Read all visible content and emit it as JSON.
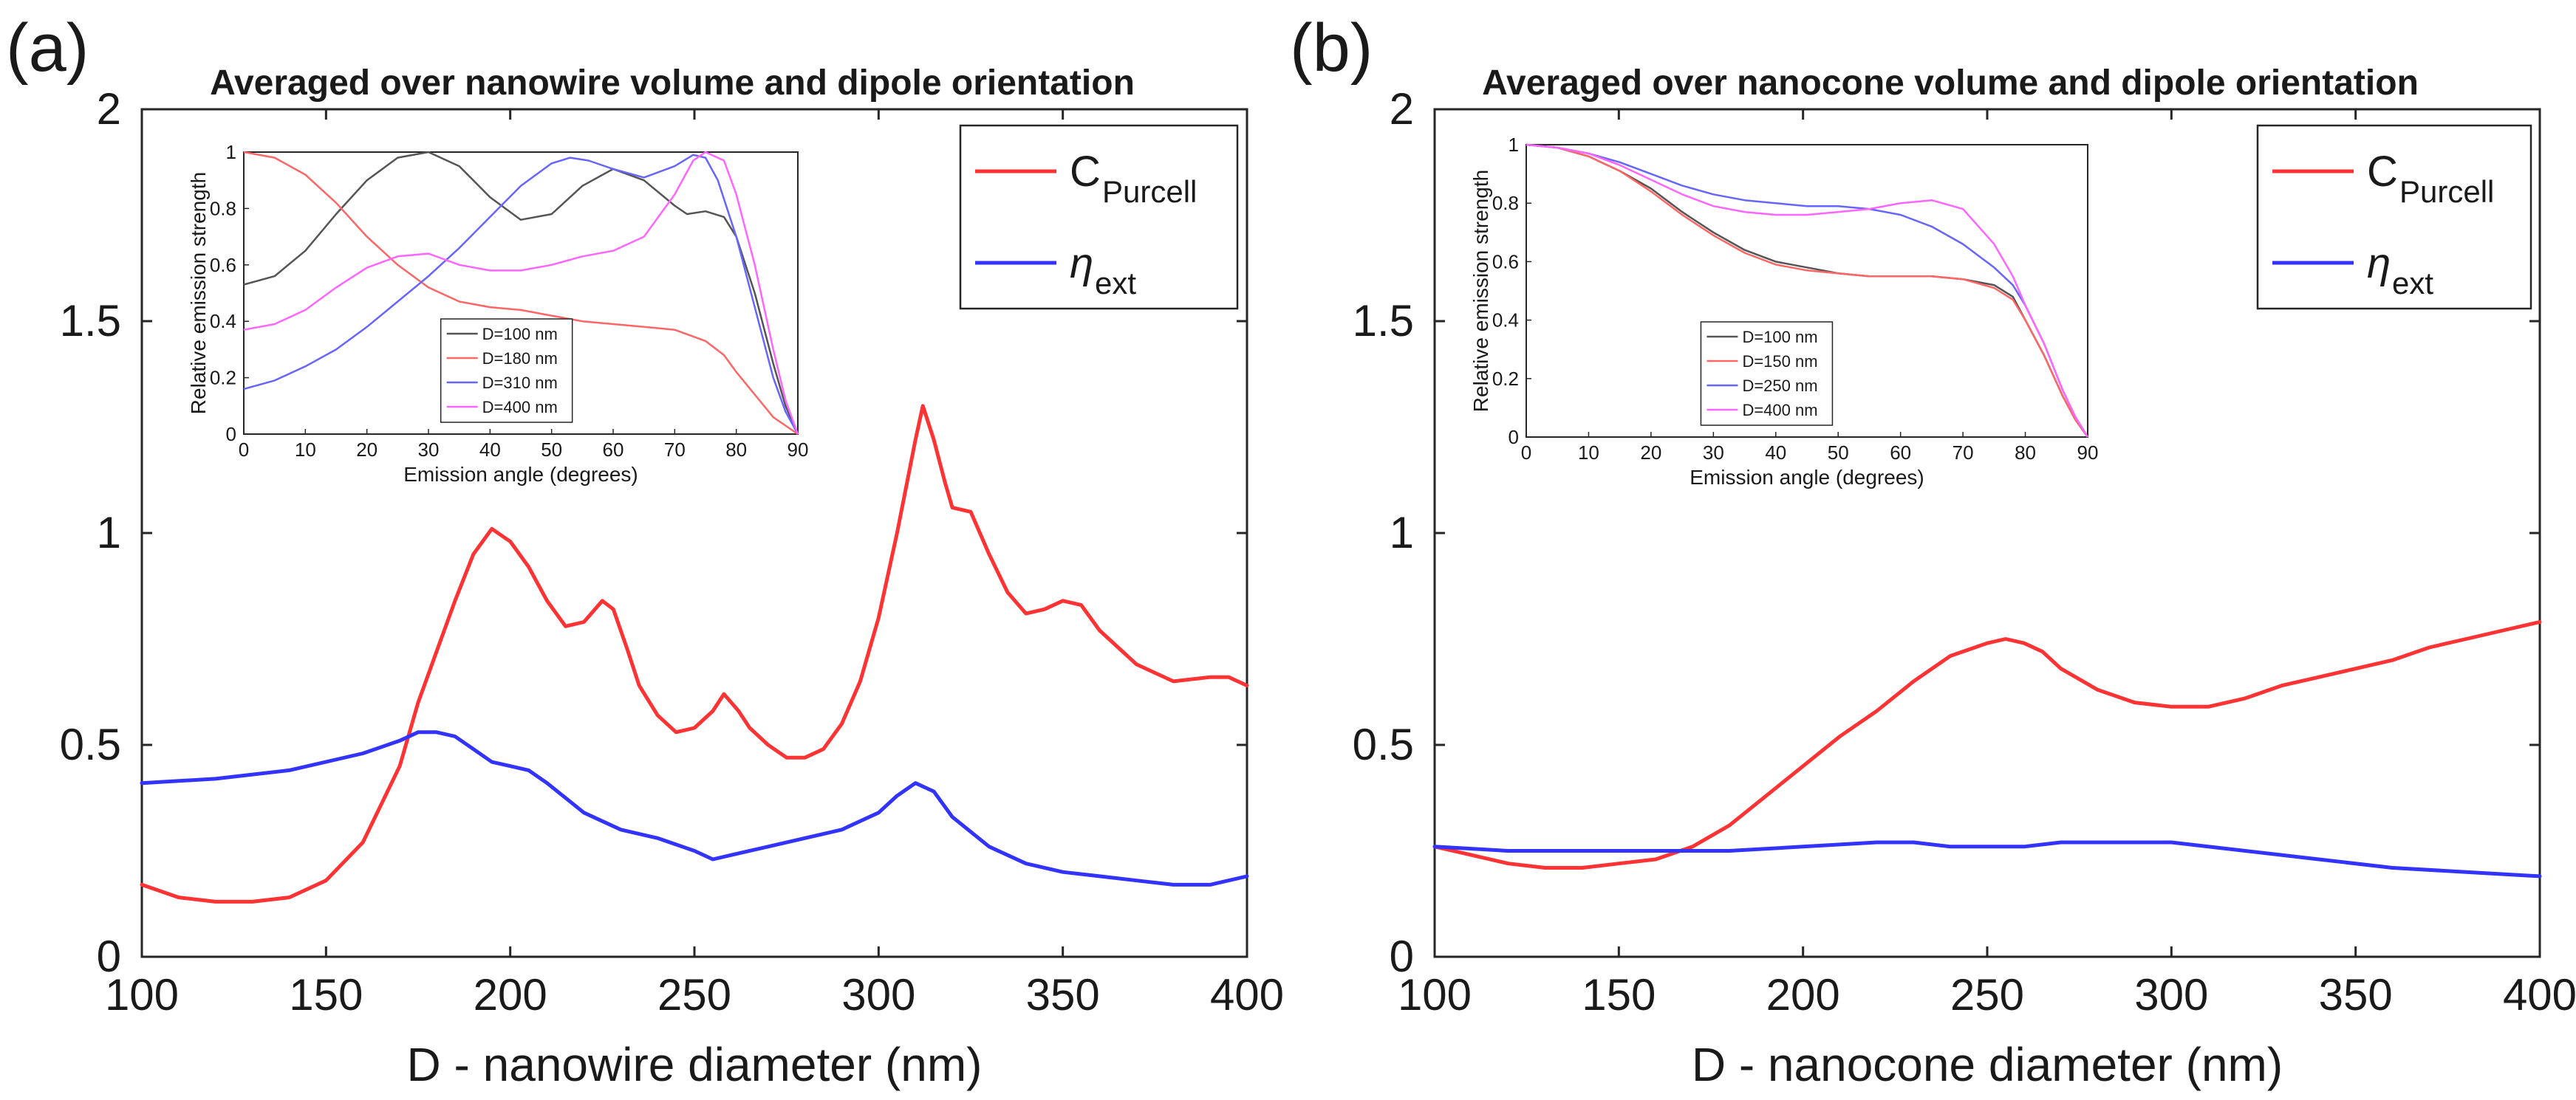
{
  "chart_data": [
    {
      "panel_label": "(a)",
      "type": "line",
      "title": "Averaged over nanowire volume and dipole orientation",
      "xlabel": "D - nanowire diameter (nm)",
      "ylabel": "",
      "xlim": [
        100,
        400
      ],
      "ylim": [
        0,
        2
      ],
      "xticks": [
        "100",
        "150",
        "200",
        "250",
        "300",
        "350",
        "400"
      ],
      "yticks": [
        "0",
        "0.5",
        "1",
        "1.5",
        "2"
      ],
      "legend": {
        "position": "top-right",
        "entries": [
          {
            "label": "C",
            "sub": "Purcell",
            "color": "#ff3333"
          },
          {
            "label": "η",
            "sub": "ext",
            "color": "#3333ff"
          }
        ]
      },
      "series": [
        {
          "name": "C_Purcell",
          "color": "#ff3333",
          "x": [
            100,
            110,
            120,
            130,
            140,
            150,
            160,
            170,
            175,
            180,
            185,
            190,
            195,
            200,
            205,
            210,
            215,
            220,
            225,
            228,
            232,
            235,
            240,
            245,
            250,
            255,
            258,
            262,
            265,
            270,
            275,
            280,
            285,
            290,
            295,
            300,
            305,
            310,
            312,
            315,
            318,
            320,
            325,
            330,
            335,
            340,
            345,
            350,
            355,
            360,
            370,
            380,
            390,
            395,
            400
          ],
          "y": [
            0.17,
            0.14,
            0.13,
            0.13,
            0.14,
            0.18,
            0.27,
            0.45,
            0.6,
            0.72,
            0.84,
            0.95,
            1.01,
            0.98,
            0.92,
            0.84,
            0.78,
            0.79,
            0.84,
            0.82,
            0.72,
            0.64,
            0.57,
            0.53,
            0.54,
            0.58,
            0.62,
            0.58,
            0.54,
            0.5,
            0.47,
            0.47,
            0.49,
            0.55,
            0.65,
            0.8,
            1.0,
            1.22,
            1.3,
            1.22,
            1.12,
            1.06,
            1.05,
            0.95,
            0.86,
            0.81,
            0.82,
            0.84,
            0.83,
            0.77,
            0.69,
            0.65,
            0.66,
            0.66,
            0.64
          ]
        },
        {
          "name": "η_ext",
          "color": "#3333ff",
          "x": [
            100,
            120,
            140,
            160,
            170,
            175,
            180,
            185,
            190,
            195,
            200,
            205,
            210,
            220,
            230,
            240,
            250,
            255,
            260,
            270,
            280,
            290,
            300,
            305,
            310,
            315,
            320,
            330,
            340,
            350,
            360,
            370,
            380,
            390,
            400
          ],
          "y": [
            0.41,
            0.42,
            0.44,
            0.48,
            0.51,
            0.53,
            0.53,
            0.52,
            0.49,
            0.46,
            0.45,
            0.44,
            0.41,
            0.34,
            0.3,
            0.28,
            0.25,
            0.23,
            0.24,
            0.26,
            0.28,
            0.3,
            0.34,
            0.38,
            0.41,
            0.39,
            0.33,
            0.26,
            0.22,
            0.2,
            0.19,
            0.18,
            0.17,
            0.17,
            0.19
          ]
        }
      ],
      "inset": {
        "xlabel": "Emission angle (degrees)",
        "ylabel": "Relative emission strength",
        "xlim": [
          0,
          90
        ],
        "ylim": [
          0,
          1
        ],
        "xticks": [
          "0",
          "10",
          "20",
          "30",
          "40",
          "50",
          "60",
          "70",
          "80",
          "90"
        ],
        "yticks": [
          "0",
          "0.2",
          "0.4",
          "0.6",
          "0.8",
          "1"
        ],
        "legend": {
          "position": "bottom-center"
        },
        "series": [
          {
            "name": "D=100 nm",
            "color": "#555555",
            "x": [
              0,
              5,
              10,
              15,
              20,
              25,
              30,
              35,
              40,
              45,
              50,
              55,
              60,
              65,
              70,
              72,
              75,
              78,
              80,
              83,
              86,
              88,
              90
            ],
            "y": [
              0.53,
              0.56,
              0.65,
              0.78,
              0.9,
              0.98,
              1.0,
              0.95,
              0.84,
              0.76,
              0.78,
              0.88,
              0.94,
              0.9,
              0.81,
              0.78,
              0.79,
              0.77,
              0.7,
              0.5,
              0.25,
              0.1,
              0.0
            ]
          },
          {
            "name": "D=180 nm",
            "color": "#ff6666",
            "x": [
              0,
              5,
              10,
              15,
              20,
              25,
              30,
              35,
              40,
              45,
              50,
              55,
              60,
              65,
              70,
              75,
              78,
              80,
              83,
              86,
              88,
              90
            ],
            "y": [
              1.0,
              0.98,
              0.92,
              0.82,
              0.7,
              0.6,
              0.52,
              0.47,
              0.45,
              0.44,
              0.42,
              0.4,
              0.39,
              0.38,
              0.37,
              0.33,
              0.28,
              0.22,
              0.14,
              0.06,
              0.03,
              0.0
            ]
          },
          {
            "name": "D=310 nm",
            "color": "#6666ff",
            "x": [
              0,
              5,
              10,
              15,
              20,
              25,
              30,
              35,
              40,
              45,
              50,
              53,
              56,
              60,
              65,
              70,
              73,
              75,
              77,
              80,
              83,
              86,
              88,
              90
            ],
            "y": [
              0.16,
              0.19,
              0.24,
              0.3,
              0.38,
              0.47,
              0.56,
              0.66,
              0.77,
              0.88,
              0.96,
              0.98,
              0.97,
              0.94,
              0.91,
              0.95,
              0.99,
              0.98,
              0.9,
              0.7,
              0.45,
              0.2,
              0.08,
              0.0
            ]
          },
          {
            "name": "D=400 nm",
            "color": "#ff66ff",
            "x": [
              0,
              5,
              10,
              15,
              20,
              25,
              30,
              35,
              40,
              45,
              50,
              55,
              60,
              65,
              70,
              73,
              75,
              78,
              80,
              83,
              86,
              88,
              90
            ],
            "y": [
              0.37,
              0.39,
              0.44,
              0.52,
              0.59,
              0.63,
              0.64,
              0.6,
              0.58,
              0.58,
              0.6,
              0.63,
              0.65,
              0.7,
              0.85,
              0.97,
              1.0,
              0.97,
              0.85,
              0.6,
              0.3,
              0.12,
              0.0
            ]
          }
        ]
      }
    },
    {
      "panel_label": "(b)",
      "type": "line",
      "title": "Averaged over nanocone volume and dipole orientation",
      "xlabel": "D - nanocone diameter (nm)",
      "ylabel": "",
      "xlim": [
        100,
        400
      ],
      "ylim": [
        0,
        2
      ],
      "xticks": [
        "100",
        "150",
        "200",
        "250",
        "300",
        "350",
        "400"
      ],
      "yticks": [
        "0",
        "0.5",
        "1",
        "1.5",
        "2"
      ],
      "legend": {
        "position": "top-right",
        "entries": [
          {
            "label": "C",
            "sub": "Purcell",
            "color": "#ff3333"
          },
          {
            "label": "η",
            "sub": "ext",
            "color": "#3333ff"
          }
        ]
      },
      "series": [
        {
          "name": "C_Purcell",
          "color": "#ff3333",
          "x": [
            100,
            110,
            120,
            130,
            140,
            150,
            160,
            170,
            180,
            190,
            200,
            210,
            220,
            230,
            240,
            250,
            255,
            260,
            265,
            270,
            280,
            290,
            300,
            310,
            320,
            330,
            340,
            350,
            360,
            370,
            380,
            390,
            400
          ],
          "y": [
            0.26,
            0.24,
            0.22,
            0.21,
            0.21,
            0.22,
            0.23,
            0.26,
            0.31,
            0.38,
            0.45,
            0.52,
            0.58,
            0.65,
            0.71,
            0.74,
            0.75,
            0.74,
            0.72,
            0.68,
            0.63,
            0.6,
            0.59,
            0.59,
            0.61,
            0.64,
            0.66,
            0.68,
            0.7,
            0.73,
            0.75,
            0.77,
            0.79
          ]
        },
        {
          "name": "η_ext",
          "color": "#3333ff",
          "x": [
            100,
            120,
            140,
            160,
            180,
            200,
            220,
            230,
            240,
            250,
            260,
            270,
            280,
            290,
            300,
            320,
            340,
            360,
            380,
            400
          ],
          "y": [
            0.26,
            0.25,
            0.25,
            0.25,
            0.25,
            0.26,
            0.27,
            0.27,
            0.26,
            0.26,
            0.26,
            0.27,
            0.27,
            0.27,
            0.27,
            0.25,
            0.23,
            0.21,
            0.2,
            0.19
          ]
        }
      ],
      "inset": {
        "xlabel": "Emission angle (degrees)",
        "ylabel": "Relative emission strength",
        "xlim": [
          0,
          90
        ],
        "ylim": [
          0,
          1
        ],
        "xticks": [
          "0",
          "10",
          "20",
          "30",
          "40",
          "50",
          "60",
          "70",
          "80",
          "90"
        ],
        "yticks": [
          "0",
          "0.2",
          "0.4",
          "0.6",
          "0.8",
          "1"
        ],
        "legend": {
          "position": "bottom-center"
        },
        "series": [
          {
            "name": "D=100 nm",
            "color": "#555555",
            "x": [
              0,
              5,
              10,
              15,
              20,
              25,
              30,
              35,
              40,
              45,
              50,
              55,
              60,
              65,
              70,
              75,
              78,
              80,
              83,
              86,
              88,
              90
            ],
            "y": [
              1.0,
              0.99,
              0.96,
              0.91,
              0.85,
              0.77,
              0.7,
              0.64,
              0.6,
              0.58,
              0.56,
              0.55,
              0.55,
              0.55,
              0.54,
              0.52,
              0.48,
              0.4,
              0.28,
              0.14,
              0.06,
              0.0
            ]
          },
          {
            "name": "D=150 nm",
            "color": "#ff6666",
            "x": [
              0,
              5,
              10,
              15,
              20,
              25,
              30,
              35,
              40,
              45,
              50,
              55,
              60,
              65,
              70,
              75,
              78,
              80,
              83,
              86,
              88,
              90
            ],
            "y": [
              1.0,
              0.99,
              0.96,
              0.91,
              0.84,
              0.76,
              0.69,
              0.63,
              0.59,
              0.57,
              0.56,
              0.55,
              0.55,
              0.55,
              0.54,
              0.51,
              0.47,
              0.4,
              0.28,
              0.14,
              0.06,
              0.0
            ]
          },
          {
            "name": "D=250 nm",
            "color": "#6666ff",
            "x": [
              0,
              5,
              10,
              15,
              20,
              25,
              30,
              35,
              40,
              45,
              50,
              55,
              60,
              65,
              70,
              75,
              78,
              80,
              83,
              86,
              88,
              90
            ],
            "y": [
              1.0,
              0.99,
              0.97,
              0.94,
              0.9,
              0.86,
              0.83,
              0.81,
              0.8,
              0.79,
              0.79,
              0.78,
              0.76,
              0.72,
              0.66,
              0.58,
              0.52,
              0.45,
              0.32,
              0.16,
              0.07,
              0.0
            ]
          },
          {
            "name": "D=400 nm",
            "color": "#ff66ff",
            "x": [
              0,
              5,
              10,
              15,
              20,
              25,
              30,
              35,
              40,
              45,
              50,
              55,
              60,
              65,
              70,
              75,
              78,
              80,
              83,
              86,
              88,
              90
            ],
            "y": [
              1.0,
              0.99,
              0.97,
              0.93,
              0.88,
              0.83,
              0.79,
              0.77,
              0.76,
              0.76,
              0.77,
              0.78,
              0.8,
              0.81,
              0.78,
              0.66,
              0.55,
              0.45,
              0.32,
              0.16,
              0.07,
              0.0
            ]
          }
        ]
      }
    }
  ]
}
